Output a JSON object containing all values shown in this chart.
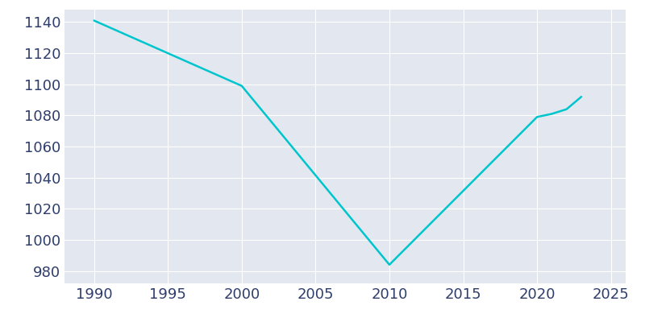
{
  "years": [
    1990,
    2000,
    2010,
    2020,
    2021,
    2022,
    2023
  ],
  "population": [
    1141,
    1099,
    984,
    1079,
    1081,
    1084,
    1092
  ],
  "line_color": "#00C5CD",
  "bg_color": "#E3E8F0",
  "plot_bg_color": "#E3E8F0",
  "grid_color": "#FFFFFF",
  "text_color": "#2F3D6B",
  "xlim": [
    1988,
    2026
  ],
  "ylim": [
    972,
    1148
  ],
  "yticks": [
    980,
    1000,
    1020,
    1040,
    1060,
    1080,
    1100,
    1120,
    1140
  ],
  "xticks": [
    1990,
    1995,
    2000,
    2005,
    2010,
    2015,
    2020,
    2025
  ],
  "linewidth": 1.8,
  "tick_fontsize": 13
}
